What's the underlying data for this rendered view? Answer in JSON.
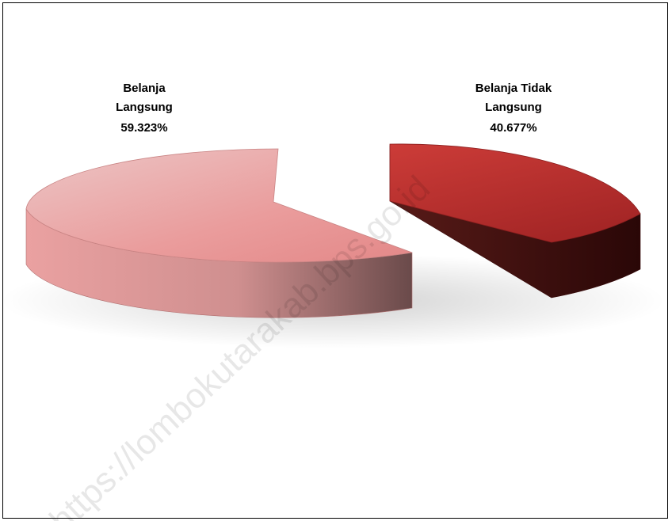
{
  "chart_data": {
    "type": "pie",
    "style": "3d-exploded",
    "slices": [
      {
        "label_line1": "Belanja",
        "label_line2": "Langsung",
        "percent_label": "59.323%",
        "value": 59.323,
        "color": "#e8a3a3"
      },
      {
        "label_line1": "Belanja Tidak",
        "label_line2": "Langsung",
        "percent_label": "40.677%",
        "value": 40.677,
        "color": "#b82828"
      }
    ]
  },
  "watermark": "https://lombokutarakab.bps.go.id"
}
